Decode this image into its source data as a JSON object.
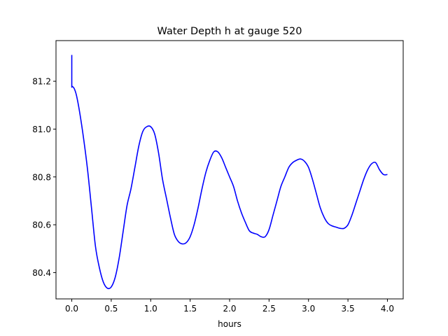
{
  "chart_data": {
    "type": "line",
    "title": "Water Depth h at gauge 520",
    "xlabel": "hours",
    "ylabel": "",
    "xlim": [
      -0.2,
      4.2
    ],
    "ylim": [
      80.29,
      81.37
    ],
    "xticks": [
      0.0,
      0.5,
      1.0,
      1.5,
      2.0,
      2.5,
      3.0,
      3.5,
      4.0
    ],
    "xtick_labels": [
      "0.0",
      "0.5",
      "1.0",
      "1.5",
      "2.0",
      "2.5",
      "3.0",
      "3.5",
      "4.0"
    ],
    "yticks": [
      80.4,
      80.6,
      80.8,
      81.0,
      81.2
    ],
    "ytick_labels": [
      "80.4",
      "80.6",
      "80.8",
      "81.0",
      "81.2"
    ],
    "grid": false,
    "series": [
      {
        "color": "#0000ff",
        "x": [
          0.0,
          0.0,
          0.0,
          0.03,
          0.06,
          0.1,
          0.15,
          0.2,
          0.25,
          0.3,
          0.35,
          0.4,
          0.45,
          0.5,
          0.55,
          0.6,
          0.65,
          0.7,
          0.75,
          0.8,
          0.85,
          0.9,
          0.95,
          1.0,
          1.05,
          1.1,
          1.15,
          1.2,
          1.25,
          1.3,
          1.35,
          1.4,
          1.45,
          1.5,
          1.55,
          1.6,
          1.65,
          1.7,
          1.75,
          1.8,
          1.85,
          1.9,
          1.95,
          2.0,
          2.05,
          2.1,
          2.15,
          2.2,
          2.25,
          2.3,
          2.35,
          2.4,
          2.45,
          2.5,
          2.55,
          2.6,
          2.65,
          2.7,
          2.75,
          2.8,
          2.85,
          2.9,
          2.95,
          3.0,
          3.05,
          3.1,
          3.15,
          3.2,
          3.25,
          3.3,
          3.35,
          3.4,
          3.45,
          3.5,
          3.55,
          3.6,
          3.65,
          3.7,
          3.75,
          3.8,
          3.85,
          3.9,
          3.95,
          4.0
        ],
        "y": [
          81.31,
          81.175,
          81.18,
          81.17,
          81.14,
          81.07,
          80.96,
          80.83,
          80.67,
          80.51,
          80.42,
          80.36,
          80.335,
          80.34,
          80.38,
          80.46,
          80.57,
          80.68,
          80.75,
          80.84,
          80.93,
          80.99,
          81.01,
          81.01,
          80.98,
          80.9,
          80.79,
          80.71,
          80.63,
          80.56,
          80.53,
          80.52,
          80.525,
          80.55,
          80.6,
          80.67,
          80.75,
          80.82,
          80.87,
          80.905,
          80.905,
          80.88,
          80.84,
          80.8,
          80.76,
          80.7,
          80.65,
          80.61,
          80.575,
          80.565,
          80.56,
          80.55,
          80.55,
          80.58,
          80.64,
          80.7,
          80.76,
          80.8,
          80.84,
          80.86,
          80.87,
          80.875,
          80.865,
          80.84,
          80.79,
          80.73,
          80.67,
          80.63,
          80.605,
          80.595,
          80.59,
          80.585,
          80.585,
          80.6,
          80.64,
          80.69,
          80.74,
          80.79,
          80.83,
          80.855,
          80.86,
          80.83,
          80.81,
          80.81
        ]
      }
    ]
  }
}
